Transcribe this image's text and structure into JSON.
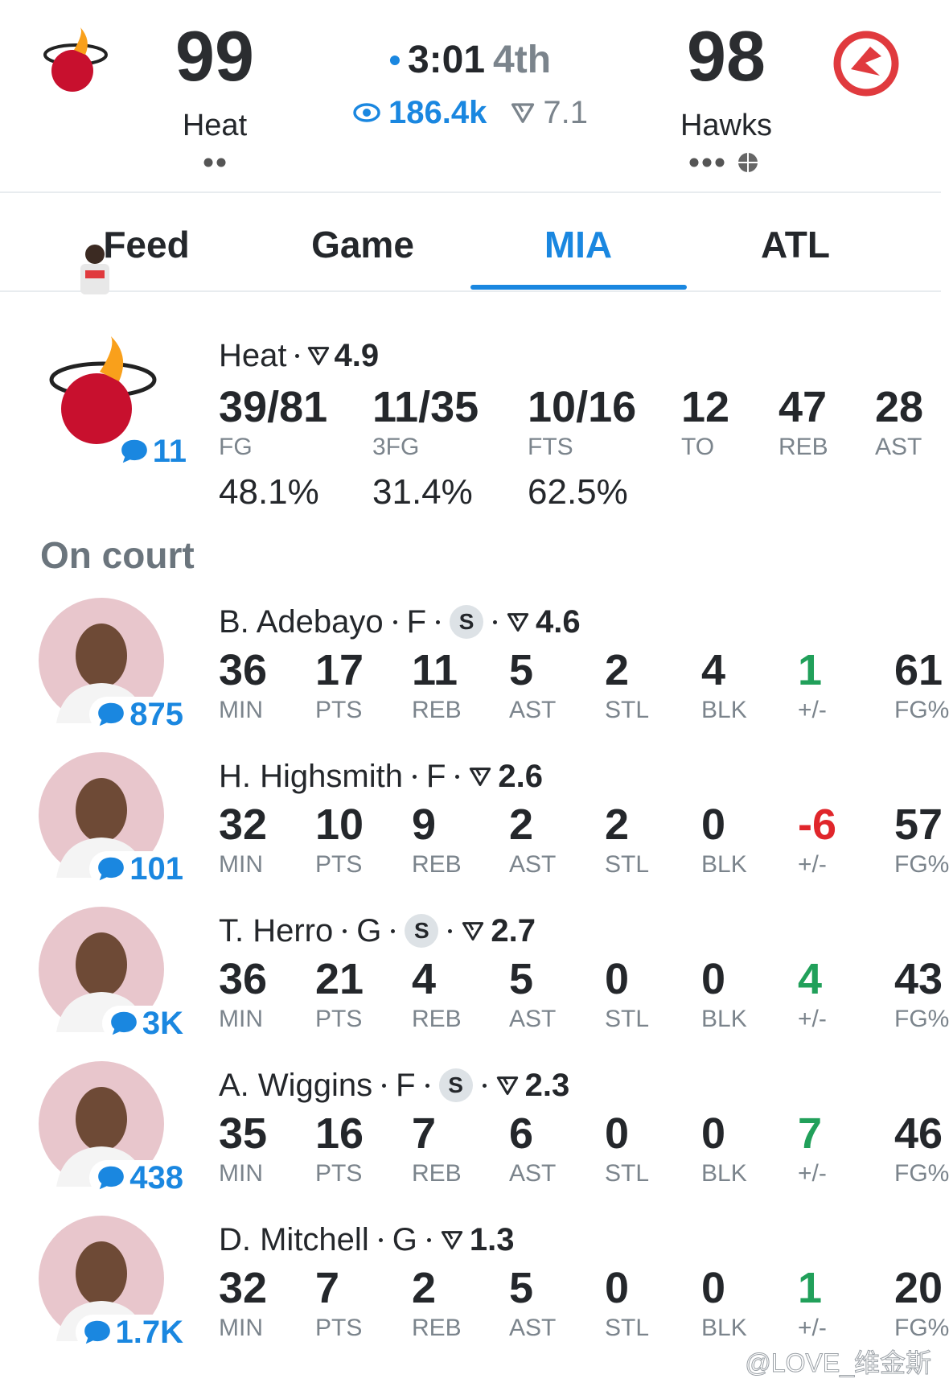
{
  "header": {
    "home": {
      "score": 99,
      "team": "Heat"
    },
    "away": {
      "score": 98,
      "team": "Hawks"
    },
    "clock": "3:01",
    "period": "4th",
    "viewers": "186.4k",
    "rating": 7.1
  },
  "tabs": [
    "Feed",
    "Game",
    "MIA",
    "ATL"
  ],
  "team_summary": {
    "team": "Heat",
    "rating": 4.9,
    "comments": 11,
    "stats": [
      {
        "value": "39/81",
        "label": "FG",
        "pct": "48.1%"
      },
      {
        "value": "11/35",
        "label": "3FG",
        "pct": "31.4%"
      },
      {
        "value": "10/16",
        "label": "FTS",
        "pct": "62.5%"
      },
      {
        "value": 12,
        "label": "TO"
      },
      {
        "value": 47,
        "label": "REB"
      },
      {
        "value": 28,
        "label": "AST"
      }
    ]
  },
  "section_title": "On court",
  "stat_labels": [
    "MIN",
    "PTS",
    "REB",
    "AST",
    "STL",
    "BLK",
    "+/-",
    "FG%"
  ],
  "players": [
    {
      "name": "B. Adebayo",
      "position": "F",
      "badge": "S",
      "rating": 4.6,
      "comments": "875",
      "stats": [
        36,
        17,
        11,
        5,
        2,
        4,
        1,
        61
      ]
    },
    {
      "name": "H. Highsmith",
      "position": "F",
      "rating": 2.6,
      "comments": "101",
      "stats": [
        32,
        10,
        9,
        2,
        2,
        0,
        -6,
        57
      ]
    },
    {
      "name": "T. Herro",
      "position": "G",
      "badge": "S",
      "rating": 2.7,
      "comments": "3K",
      "stats": [
        36,
        21,
        4,
        5,
        0,
        0,
        4,
        43
      ]
    },
    {
      "name": "A. Wiggins",
      "position": "F",
      "badge": "S",
      "rating": 2.3,
      "comments": "438",
      "stats": [
        35,
        16,
        7,
        6,
        0,
        0,
        7,
        46
      ]
    },
    {
      "name": "D. Mitchell",
      "position": "G",
      "rating": 1.3,
      "comments": "1.7K",
      "stats": [
        32,
        7,
        2,
        5,
        0,
        0,
        1,
        20
      ]
    }
  ],
  "watermark": "@LOVE_维金斯"
}
